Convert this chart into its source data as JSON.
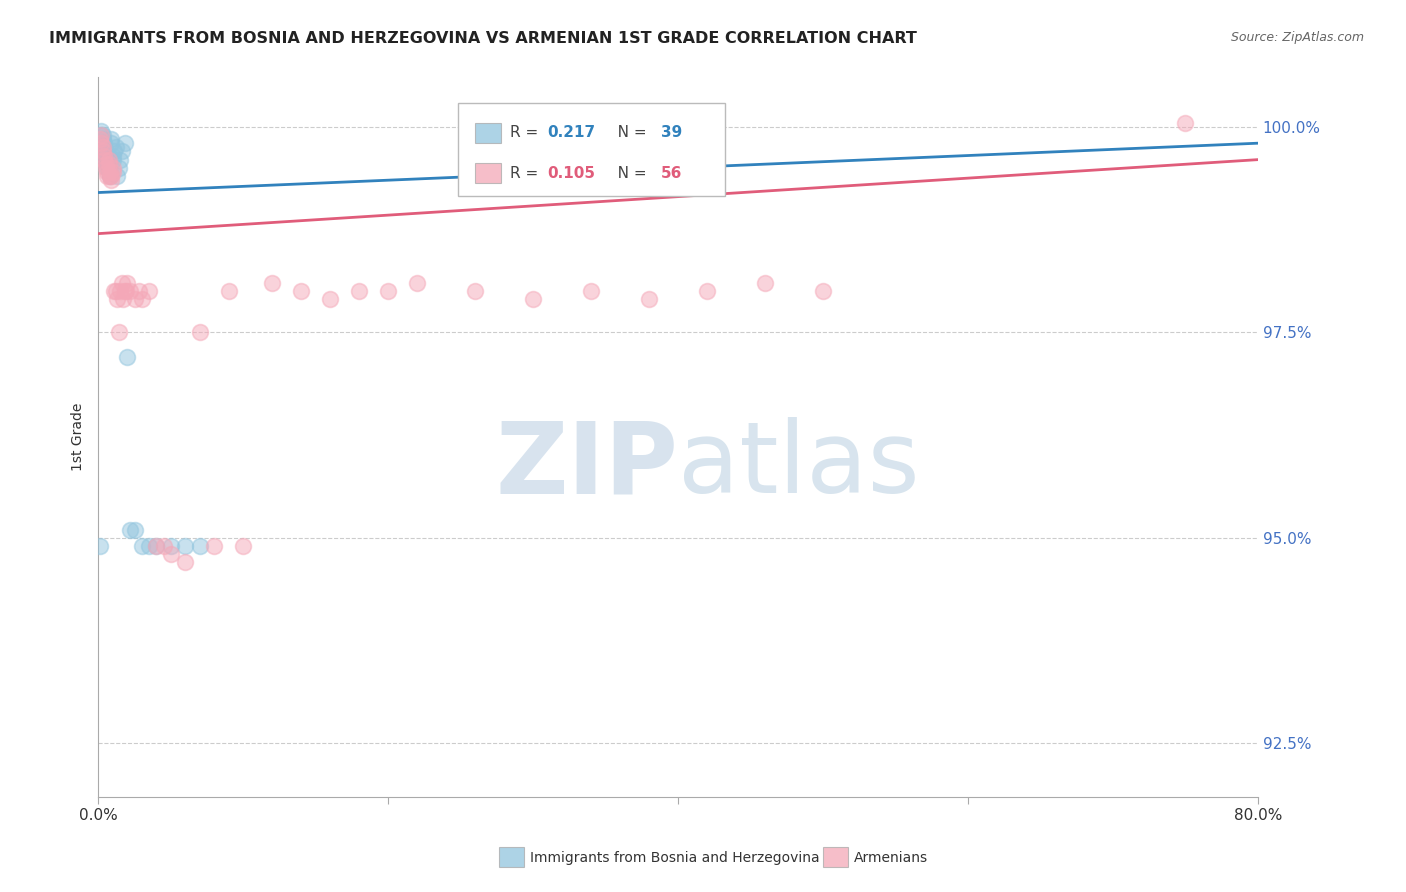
{
  "title": "IMMIGRANTS FROM BOSNIA AND HERZEGOVINA VS ARMENIAN 1ST GRADE CORRELATION CHART",
  "source": "Source: ZipAtlas.com",
  "ylabel": "1st Grade",
  "ytick_labels": [
    "100.0%",
    "97.5%",
    "95.0%",
    "92.5%"
  ],
  "ytick_values": [
    1.0,
    0.975,
    0.95,
    0.925
  ],
  "legend_blue_label": "Immigrants from Bosnia and Herzegovina",
  "legend_pink_label": "Armenians",
  "blue_color": "#92c5de",
  "pink_color": "#f4a8b8",
  "blue_line_color": "#3182bd",
  "pink_line_color": "#e05c7a",
  "blue_x": [
    0.001,
    0.002,
    0.002,
    0.003,
    0.003,
    0.003,
    0.004,
    0.004,
    0.004,
    0.005,
    0.005,
    0.005,
    0.006,
    0.006,
    0.006,
    0.007,
    0.007,
    0.008,
    0.008,
    0.009,
    0.009,
    0.01,
    0.01,
    0.011,
    0.012,
    0.013,
    0.014,
    0.015,
    0.016,
    0.018,
    0.02,
    0.022,
    0.025,
    0.03,
    0.035,
    0.04,
    0.05,
    0.06,
    0.07
  ],
  "blue_y": [
    0.949,
    0.999,
    0.9995,
    0.9975,
    0.9985,
    0.999,
    0.997,
    0.9975,
    0.998,
    0.996,
    0.9965,
    0.997,
    0.995,
    0.9955,
    0.996,
    0.996,
    0.9965,
    0.994,
    0.9945,
    0.998,
    0.9985,
    0.996,
    0.9965,
    0.997,
    0.9975,
    0.994,
    0.995,
    0.996,
    0.997,
    0.998,
    0.972,
    0.951,
    0.951,
    0.949,
    0.949,
    0.949,
    0.949,
    0.949,
    0.949
  ],
  "pink_x": [
    0.001,
    0.002,
    0.002,
    0.003,
    0.003,
    0.004,
    0.004,
    0.005,
    0.005,
    0.006,
    0.006,
    0.007,
    0.007,
    0.008,
    0.008,
    0.009,
    0.009,
    0.01,
    0.01,
    0.011,
    0.012,
    0.013,
    0.014,
    0.015,
    0.016,
    0.017,
    0.018,
    0.019,
    0.02,
    0.022,
    0.025,
    0.028,
    0.03,
    0.035,
    0.04,
    0.045,
    0.05,
    0.06,
    0.07,
    0.08,
    0.09,
    0.1,
    0.12,
    0.14,
    0.16,
    0.18,
    0.2,
    0.22,
    0.26,
    0.3,
    0.34,
    0.38,
    0.42,
    0.46,
    0.5,
    0.75
  ],
  "pink_y": [
    0.9985,
    0.999,
    0.998,
    0.997,
    0.9975,
    0.996,
    0.9965,
    0.995,
    0.9955,
    0.9945,
    0.994,
    0.996,
    0.9955,
    0.994,
    0.9945,
    0.9935,
    0.994,
    0.995,
    0.9945,
    0.98,
    0.98,
    0.979,
    0.975,
    0.98,
    0.981,
    0.979,
    0.98,
    0.98,
    0.981,
    0.98,
    0.979,
    0.98,
    0.979,
    0.98,
    0.949,
    0.949,
    0.948,
    0.947,
    0.975,
    0.949,
    0.98,
    0.949,
    0.981,
    0.98,
    0.979,
    0.98,
    0.98,
    0.981,
    0.98,
    0.979,
    0.98,
    0.979,
    0.98,
    0.981,
    0.98,
    1.0005
  ],
  "xlim": [
    0.0,
    0.8
  ],
  "ylim": [
    0.9185,
    1.006
  ],
  "blue_line_x0": 0.0,
  "blue_line_x1": 0.8,
  "blue_line_y0": 0.992,
  "blue_line_y1": 0.998,
  "pink_line_x0": 0.0,
  "pink_line_x1": 0.8,
  "pink_line_y0": 0.987,
  "pink_line_y1": 0.996,
  "watermark_zip_color": "#c8d8e8",
  "watermark_atlas_color": "#b8cfe0"
}
